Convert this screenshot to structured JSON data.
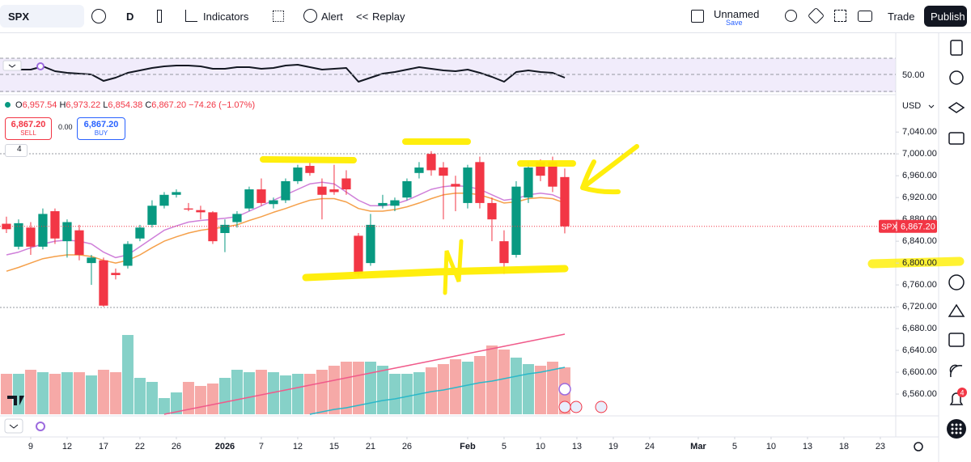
{
  "toolbar": {
    "symbol": "SPX",
    "interval": "D",
    "indicators": "Indicators",
    "alert": "Alert",
    "replay": "Replay",
    "layout_name": "Unnamed",
    "save": "Save",
    "trade": "Trade",
    "publish": "Publish"
  },
  "legend": {
    "ohlc": [
      "O",
      "6,957.54",
      "H",
      "6,973.22",
      "L",
      "6,854.38",
      "C",
      "6,867.20"
    ],
    "change": "−74.26 (−1.07%)"
  },
  "order": {
    "sell_price": "6,867.20",
    "sell": "SELL",
    "spread": "0.00",
    "buy_price": "6,867.20",
    "buy": "BUY"
  },
  "indicator_count": "4",
  "currency": "USD",
  "notifications": "4",
  "chart_data": {
    "type": "candlestick",
    "xlim": [
      -0.53,
      73.27
    ],
    "xticks": [
      {
        "value": 2,
        "label": "9"
      },
      {
        "value": 5,
        "label": "12"
      },
      {
        "value": 8,
        "label": "17"
      },
      {
        "value": 11,
        "label": "22"
      },
      {
        "value": 14,
        "label": "26"
      },
      {
        "value": 18,
        "label": "2026"
      },
      {
        "value": 21,
        "label": "7"
      },
      {
        "value": 24,
        "label": "12"
      },
      {
        "value": 27,
        "label": "15"
      },
      {
        "value": 30,
        "label": "21"
      },
      {
        "value": 33,
        "label": "26"
      },
      {
        "value": 38,
        "label": "Feb"
      },
      {
        "value": 41,
        "label": "5"
      },
      {
        "value": 44,
        "label": "10"
      },
      {
        "value": 47,
        "label": "13"
      },
      {
        "value": 50,
        "label": "19"
      },
      {
        "value": 53,
        "label": "24"
      },
      {
        "value": 57,
        "label": "Mar"
      },
      {
        "value": 60,
        "label": "5"
      },
      {
        "value": 63,
        "label": "10"
      },
      {
        "value": 66,
        "label": "13"
      },
      {
        "value": 69,
        "label": "18"
      },
      {
        "value": 72,
        "label": "23"
      }
    ],
    "open": [
      6872,
      6830,
      6865,
      6830,
      6895,
      6840,
      6860,
      6800,
      6805,
      6782,
      6795,
      6845,
      6870,
      6905,
      6925,
      6900,
      6897,
      6893,
      6855,
      6875,
      6900,
      6935,
      6908,
      6915,
      6950,
      6978,
      6940,
      6935,
      6955,
      6850,
      6800,
      6905,
      6905,
      6920,
      6965,
      7000,
      6975,
      6945,
      6910,
      6985,
      6910,
      6840,
      6815,
      6920,
      6985,
      6985,
      6957.54
    ],
    "high": [
      6885,
      6880,
      6875,
      6900,
      6900,
      6880,
      6870,
      6815,
      6810,
      6790,
      6840,
      6870,
      6915,
      6930,
      6935,
      6910,
      6905,
      6895,
      6880,
      6895,
      6940,
      6955,
      6920,
      6955,
      6980,
      6985,
      6955,
      6980,
      6970,
      6855,
      6890,
      6925,
      6920,
      6955,
      6985,
      7005,
      6985,
      6960,
      6980,
      6995,
      6920,
      6860,
      6950,
      6985,
      6990,
      6995,
      6973.22
    ],
    "low": [
      6855,
      6825,
      6815,
      6825,
      6835,
      6810,
      6805,
      6760,
      6720,
      6770,
      6790,
      6840,
      6865,
      6900,
      6920,
      6895,
      6880,
      6835,
      6820,
      6865,
      6895,
      6905,
      6900,
      6910,
      6945,
      6960,
      6880,
      6925,
      6925,
      6775,
      6795,
      6900,
      6895,
      6915,
      6955,
      6960,
      6880,
      6895,
      6900,
      6900,
      6840,
      6780,
      6810,
      6910,
      6950,
      6930,
      6854.38
    ],
    "close": [
      6862,
      6873,
      6830,
      6890,
      6845,
      6875,
      6815,
      6810,
      6722,
      6778,
      6835,
      6865,
      6905,
      6925,
      6930,
      6898,
      6893,
      6840,
      6870,
      6890,
      6935,
      6910,
      6915,
      6950,
      6975,
      6965,
      6925,
      6930,
      6935,
      6780,
      6870,
      6910,
      6915,
      6950,
      6975,
      6970,
      6960,
      6940,
      6975,
      6910,
      6880,
      6800,
      6940,
      6975,
      6960,
      6940,
      6867.2
    ],
    "up_color": "#089981",
    "down_color": "#f23645",
    "ylim": [
      6523,
      7107
    ],
    "yticks": [
      {
        "value": 7040,
        "label": "7,040.00"
      },
      {
        "value": 7000,
        "label": "7,000.00"
      },
      {
        "value": 6960,
        "label": "6,960.00"
      },
      {
        "value": 6920,
        "label": "6,920.00"
      },
      {
        "value": 6880,
        "label": "6,880.00"
      },
      {
        "value": 6840,
        "label": "6,840.00"
      },
      {
        "value": 6800,
        "label": "6,800.00"
      },
      {
        "value": 6760,
        "label": "6,760.00"
      },
      {
        "value": 6720,
        "label": "6,720.00"
      },
      {
        "value": 6680,
        "label": "6,680.00"
      },
      {
        "value": 6640,
        "label": "6,640.00"
      },
      {
        "value": 6600,
        "label": "6,600.00"
      },
      {
        "value": 6560,
        "label": "6,560.00"
      }
    ],
    "moving_averages": [
      {
        "color": "#cf7fd9",
        "values": [
          6815,
          6820,
          6828,
          6835,
          6840,
          6842,
          6840,
          6835,
          6820,
          6810,
          6815,
          6830,
          6845,
          6860,
          6868,
          6875,
          6878,
          6880,
          6882,
          6885,
          6895,
          6905,
          6915,
          6925,
          6935,
          6945,
          6948,
          6945,
          6930,
          6915,
          6905,
          6905,
          6908,
          6915,
          6925,
          6935,
          6940,
          6942,
          6940,
          6935,
          6925,
          6915,
          6918,
          6925,
          6928,
          6925,
          6915
        ]
      },
      {
        "color": "#f5a04a",
        "values": [
          6785,
          6792,
          6800,
          6808,
          6812,
          6815,
          6815,
          6812,
          6805,
          6800,
          6805,
          6815,
          6828,
          6840,
          6848,
          6855,
          6860,
          6863,
          6866,
          6870,
          6878,
          6885,
          6893,
          6900,
          6908,
          6915,
          6918,
          6918,
          6912,
          6900,
          6895,
          6895,
          6898,
          6903,
          6910,
          6918,
          6925,
          6928,
          6928,
          6925,
          6918,
          6910,
          6912,
          6918,
          6920,
          6918,
          6910
        ]
      }
    ],
    "volume": {
      "lim": [
        0,
        100
      ],
      "values": [
        50,
        50,
        55,
        52,
        50,
        52,
        52,
        48,
        55,
        52,
        98,
        45,
        40,
        20,
        27,
        40,
        35,
        38,
        45,
        55,
        52,
        55,
        52,
        48,
        50,
        50,
        55,
        60,
        65,
        65,
        65,
        60,
        50,
        50,
        52,
        58,
        62,
        68,
        65,
        72,
        85,
        80,
        70,
        62,
        60,
        65,
        58
      ],
      "up_color": "#86d1c8",
      "down_color": "#f6a9a7",
      "averages": [
        {
          "color": "#f05a8a",
          "values": [
            null,
            null,
            null,
            null,
            null,
            null,
            null,
            null,
            null,
            null,
            null,
            null,
            null,
            0,
            3,
            6,
            9,
            12,
            15,
            18,
            21,
            24,
            27,
            30,
            33,
            36,
            39,
            42,
            45,
            48,
            51,
            54,
            57,
            60,
            63,
            66,
            69,
            72,
            75,
            78,
            81,
            84,
            87,
            90,
            93,
            96,
            99
          ]
        },
        {
          "color": "#2bb8c9",
          "values": [
            null,
            null,
            null,
            null,
            null,
            null,
            null,
            null,
            null,
            null,
            null,
            null,
            null,
            null,
            null,
            null,
            null,
            null,
            null,
            null,
            null,
            null,
            null,
            null,
            null,
            0,
            3,
            6,
            8,
            11,
            14,
            17,
            19,
            22,
            25,
            28,
            30,
            33,
            36,
            39,
            41,
            44,
            47,
            50,
            52,
            55,
            58
          ]
        }
      ]
    },
    "rsi": {
      "lim": [
        30,
        70
      ],
      "ticks": [
        {
          "value": 50,
          "label": "50.00"
        }
      ],
      "color": "#131722",
      "values": [
        57,
        56,
        56,
        60,
        54,
        52,
        51,
        50,
        42,
        46,
        52,
        55,
        58,
        60,
        61,
        61,
        60,
        57,
        57,
        59,
        59,
        57,
        58,
        61,
        62,
        59,
        56,
        57,
        58,
        41,
        46,
        51,
        53,
        56,
        59,
        57,
        55,
        54,
        56,
        52,
        47,
        41,
        53,
        55,
        53,
        52,
        46
      ]
    },
    "last_price": {
      "symbol": "SPX",
      "label": "6,867.20"
    }
  }
}
